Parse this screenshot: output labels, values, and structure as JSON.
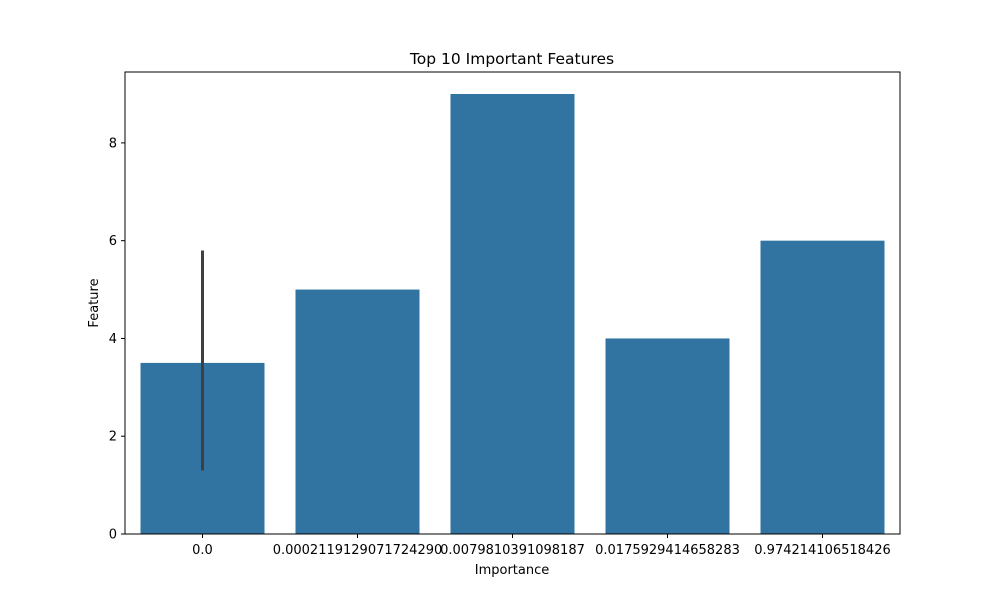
{
  "chart_data": {
    "type": "bar",
    "title": "Top 10 Important Features",
    "xlabel": "Importance",
    "ylabel": "Feature",
    "categories": [
      "0.0",
      "0.00021191290717242905",
      "0.007981039109818787",
      "0.017592941464582830",
      "0.974214106518426900"
    ],
    "category_labels": [
      "0.0",
      "0.0002119129071724290",
      "0.0079810391098187",
      "0.0175929414658283",
      "0.974214106518426"
    ],
    "values": [
      3.5,
      5,
      9,
      4,
      6
    ],
    "error_bars": [
      {
        "category": "0.0",
        "low": 1.3,
        "high": 5.8
      }
    ],
    "ylim": [
      0,
      9.45
    ],
    "yticks": [
      0,
      2,
      4,
      6,
      8
    ],
    "bar_color": "#3274a1",
    "errorbar_color": "#3f3f3f",
    "grid": false,
    "legend": "none"
  }
}
